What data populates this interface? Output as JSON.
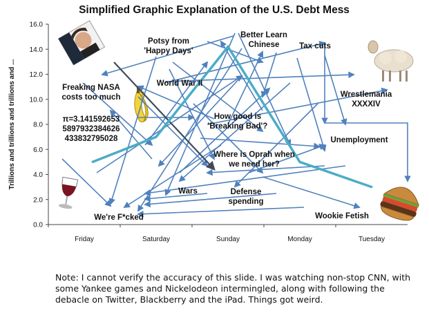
{
  "chart_data": {
    "type": "line",
    "title": "Simplified Graphic Explanation of the U.S. Debt Mess",
    "ylabel": "Trillions and trillions and trillions and ...",
    "xlabel": "",
    "categories": [
      "Friday",
      "Saturday",
      "Sunday",
      "Monday",
      "Tuesday"
    ],
    "ylim": [
      0,
      16
    ],
    "yticks": [
      "0.0",
      "2.0",
      "4.0",
      "6.0",
      "8.0",
      "10.0",
      "12.0",
      "14.0",
      "16.0"
    ],
    "grid": false,
    "series": [
      {
        "values": [
          5.0,
          7.0,
          14.2,
          5.0,
          3.0
        ],
        "color": "#4bacc6"
      }
    ],
    "annotations": [
      {
        "id": "nasa",
        "lines": [
          "Freaking NASA",
          "costs too much"
        ]
      },
      {
        "id": "pi",
        "lines": [
          "π=3.141592653",
          "5897932384626",
          "433832795028"
        ]
      },
      {
        "id": "potsy",
        "lines": [
          "Potsy from",
          "'Happy Days'"
        ]
      },
      {
        "id": "ww2",
        "lines": [
          "World War II"
        ]
      },
      {
        "id": "chinese",
        "lines": [
          "Better Learn",
          "Chinese"
        ]
      },
      {
        "id": "tax",
        "lines": [
          "Tax cuts"
        ]
      },
      {
        "id": "wrestlemania",
        "lines": [
          "Wrestlemania",
          "XXXXIV"
        ]
      },
      {
        "id": "breaking",
        "lines": [
          "How good is",
          "'Breaking Bad'?"
        ]
      },
      {
        "id": "oprah",
        "lines": [
          "Where is Oprah when",
          "we need her?"
        ]
      },
      {
        "id": "unemployment",
        "lines": [
          "Unemployment"
        ]
      },
      {
        "id": "wars",
        "lines": [
          "Wars"
        ]
      },
      {
        "id": "defense",
        "lines": [
          "Defense",
          "spending"
        ]
      },
      {
        "id": "fcked",
        "lines": [
          "We're F*cked"
        ]
      },
      {
        "id": "wookie",
        "lines": [
          "Wookie Fetish"
        ]
      }
    ],
    "arrow_color": "#4f81bd",
    "dark_arrow_color": "#404a5a"
  },
  "note": "Note: I cannot verify the accuracy of this slide. I was watching non-stop CNN, with some Yankee games and Nickelodeon intermingled, along with following the debacle on Twitter, Blackberry and the iPad. Things got weird."
}
